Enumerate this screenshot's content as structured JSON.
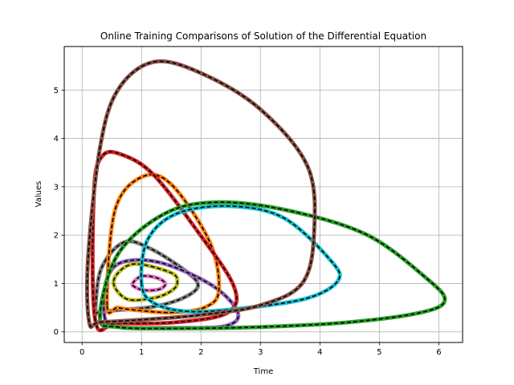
{
  "chart_data": {
    "type": "line",
    "title": "Online Training Comparisons of Solution of the Differential Equation",
    "xlabel": "Time",
    "ylabel": "Values",
    "xlim": [
      -0.3,
      6.4
    ],
    "ylim": [
      -0.22,
      5.9
    ],
    "xticks": [
      0,
      1,
      2,
      3,
      4,
      5,
      6
    ],
    "yticks": [
      0,
      1,
      2,
      3,
      4,
      5
    ],
    "grid": true,
    "legend": "none",
    "overlay": {
      "style": "dashed",
      "color": "#000000"
    },
    "series": [
      {
        "color": "#bcbd22",
        "x": [
          0.53,
          0.85,
          1.5,
          1.6,
          1.48,
          1.2,
          0.75,
          0.53
        ],
        "y": [
          1.05,
          1.4,
          1.22,
          1.0,
          0.83,
          0.7,
          0.68,
          1.05
        ]
      },
      {
        "color": "#e377c2",
        "x": [
          0.85,
          1.0,
          1.25,
          1.4,
          1.3,
          1.05,
          0.9,
          0.85
        ],
        "y": [
          1.0,
          1.15,
          1.12,
          1.0,
          0.88,
          0.86,
          0.92,
          1.0
        ]
      },
      {
        "color": "#7f7f7f",
        "x": [
          0.22,
          0.32,
          0.7,
          1.15,
          1.75,
          1.95,
          1.7,
          1.2,
          0.6,
          0.35,
          0.25,
          0.22
        ],
        "y": [
          0.4,
          1.3,
          1.85,
          1.72,
          1.25,
          0.95,
          0.7,
          0.52,
          0.45,
          0.42,
          0.4,
          0.4
        ]
      },
      {
        "color": "#9467bd",
        "x": [
          0.38,
          0.42,
          0.7,
          1.35,
          2.2,
          2.62,
          2.4,
          1.5,
          0.6,
          0.38
        ],
        "y": [
          0.3,
          1.1,
          1.45,
          1.42,
          0.95,
          0.4,
          0.12,
          0.08,
          0.1,
          0.3
        ]
      },
      {
        "color": "#ff7f0e",
        "x": [
          0.42,
          0.55,
          1.0,
          1.5,
          2.15,
          2.3,
          2.05,
          1.5,
          0.9,
          0.6,
          0.42
        ],
        "y": [
          0.55,
          2.5,
          3.2,
          3.05,
          1.85,
          0.85,
          0.5,
          0.4,
          0.45,
          0.5,
          0.55
        ]
      },
      {
        "color": "#d62728",
        "x": [
          0.22,
          0.2,
          0.35,
          0.7,
          1.2,
          1.9,
          2.55,
          2.45,
          1.6,
          0.6,
          0.22
        ],
        "y": [
          0.25,
          2.9,
          3.65,
          3.65,
          3.25,
          2.15,
          0.95,
          0.4,
          0.2,
          0.18,
          0.25
        ]
      },
      {
        "color": "#17becf",
        "x": [
          1.0,
          1.1,
          1.6,
          2.5,
          3.4,
          4.2,
          4.3,
          3.8,
          2.8,
          1.8,
          1.2,
          1.0
        ],
        "y": [
          1.0,
          1.9,
          2.45,
          2.6,
          2.35,
          1.45,
          1.05,
          0.7,
          0.5,
          0.42,
          0.6,
          1.0
        ]
      },
      {
        "color": "#2ca02c",
        "x": [
          0.3,
          0.6,
          1.4,
          2.3,
          3.5,
          4.8,
          5.8,
          6.1,
          5.7,
          4.5,
          3.0,
          1.5,
          0.6,
          0.3
        ],
        "y": [
          0.3,
          1.6,
          2.45,
          2.68,
          2.5,
          2.0,
          1.1,
          0.65,
          0.4,
          0.2,
          0.1,
          0.07,
          0.1,
          0.3
        ]
      },
      {
        "color": "#8c564b",
        "x": [
          0.12,
          0.1,
          0.3,
          0.6,
          1.2,
          2.0,
          3.0,
          3.8,
          3.9,
          3.7,
          3.0,
          2.0,
          1.0,
          0.3,
          0.12
        ],
        "y": [
          0.2,
          1.5,
          3.8,
          5.0,
          5.58,
          5.35,
          4.6,
          3.4,
          2.0,
          1.0,
          0.55,
          0.35,
          0.25,
          0.2,
          0.2
        ]
      }
    ]
  }
}
